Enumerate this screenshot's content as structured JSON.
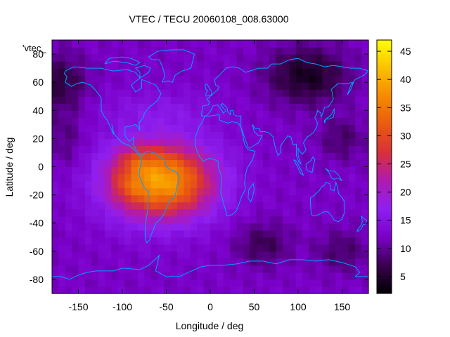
{
  "chart_data": {
    "type": "heatmap",
    "title": "VTEC / TECU 20060108_008.63000",
    "xlabel": "Longitude / deg",
    "ylabel": "Latitude / deg",
    "xlim": [
      -180,
      180
    ],
    "ylim": [
      -90,
      90
    ],
    "x_ticks": [
      -150,
      -100,
      -50,
      0,
      50,
      100,
      150
    ],
    "y_ticks": [
      -80,
      -60,
      -40,
      -20,
      0,
      20,
      40,
      60,
      80
    ],
    "colorbar": {
      "range": [
        2,
        47
      ],
      "ticks": [
        5,
        10,
        15,
        20,
        25,
        30,
        35,
        40,
        45
      ],
      "palette": [
        "#000000",
        "#3a0050",
        "#7a00c8",
        "#8e1ff0",
        "#b01ab0",
        "#d8303a",
        "#ea5a10",
        "#f68a00",
        "#fbc000",
        "#ffff00"
      ]
    },
    "legend": "'vtec_",
    "grid": false,
    "overlay": "coastlines",
    "overlay_color": "#00a0ff",
    "features": [
      {
        "name": "peak-anomaly",
        "lon": -55,
        "lat": -10,
        "value": 33
      },
      {
        "name": "background",
        "value": 12
      },
      {
        "name": "night-minimum-north",
        "lon": 100,
        "lat": 60,
        "value": 4
      }
    ]
  }
}
